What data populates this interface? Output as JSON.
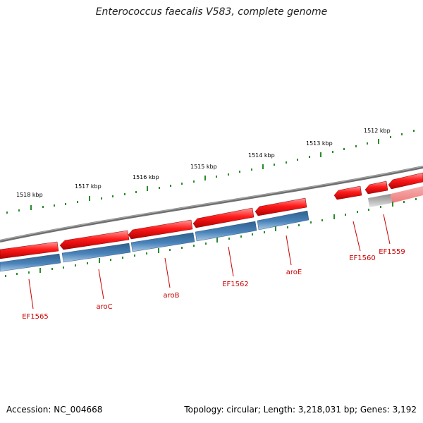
{
  "title": "Enterococcus faecalis V583, complete genome",
  "footer": {
    "accession": "Accession: NC_004668",
    "summary": "Topology: circular; Length: 3,218,031 bp; Genes: 3,192"
  },
  "colors": {
    "backbone": "#7a7a7a",
    "forward_gene": "#ee1111",
    "reverse_gene": "#3f7ab0",
    "faded_gene": "#b9b9b9",
    "tick": "#2a8a2a",
    "gene_label": "#cc0000",
    "scale_label": "#000000"
  },
  "scale_labels": [
    "1518 kbp",
    "1517 kbp",
    "1516 kbp",
    "1515 kbp",
    "1514 kbp",
    "1513 kbp",
    "1512 kbp"
  ],
  "genes": [
    {
      "label": "EF1565",
      "strand": "forward"
    },
    {
      "label": "aroC",
      "strand": "forward"
    },
    {
      "label": "aroB",
      "strand": "forward"
    },
    {
      "label": "EF1562",
      "strand": "forward"
    },
    {
      "label": "aroE",
      "strand": "forward"
    },
    {
      "label": "EF1560",
      "strand": "forward"
    },
    {
      "label": "EF1559",
      "strand": "forward"
    }
  ]
}
